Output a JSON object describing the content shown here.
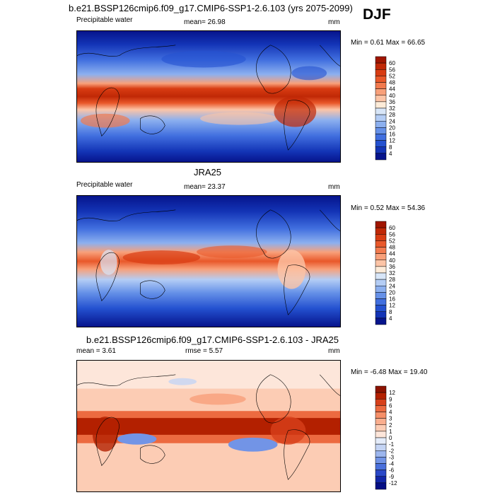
{
  "season": "DJF",
  "chart_data": [
    {
      "type": "heatmap",
      "title": "b.e21.BSSP126cmip6.f09_g17.CMIP6-SSP1-2.6.103 (yrs 2075-2099)",
      "left_label": "Precipitable water",
      "center_label": "mean=  26.98",
      "units": "mm",
      "min_max_label": "Min =   0.61 Max =  66.65",
      "min": 0.61,
      "max": 66.65,
      "mean": 26.98,
      "colorbar_levels": [
        "60",
        "56",
        "52",
        "48",
        "44",
        "40",
        "36",
        "32",
        "28",
        "24",
        "20",
        "16",
        "12",
        "8",
        "4"
      ],
      "colorbar_colors": [
        "#a01500",
        "#c02806",
        "#d83c12",
        "#e9582a",
        "#f27a4e",
        "#f8a07a",
        "#fcc4a6",
        "#fdebd8",
        "#d8e6f8",
        "#b4cdf5",
        "#8cb0ef",
        "#6691e8",
        "#416fdf",
        "#2451d0",
        "#1334b6",
        "#06148c"
      ]
    },
    {
      "type": "heatmap",
      "title": "JRA25",
      "left_label": "Precipitable water",
      "center_label": "mean=  23.37",
      "units": "mm",
      "min_max_label": "Min =   0.52 Max =  54.36",
      "min": 0.52,
      "max": 54.36,
      "mean": 23.37,
      "colorbar_levels": [
        "60",
        "56",
        "52",
        "48",
        "44",
        "40",
        "36",
        "32",
        "28",
        "24",
        "20",
        "16",
        "12",
        "8",
        "4"
      ],
      "colorbar_colors": [
        "#a01500",
        "#c02806",
        "#d83c12",
        "#e9582a",
        "#f27a4e",
        "#f8a07a",
        "#fcc4a6",
        "#fdebd8",
        "#d8e6f8",
        "#b4cdf5",
        "#8cb0ef",
        "#6691e8",
        "#416fdf",
        "#2451d0",
        "#1334b6",
        "#06148c"
      ]
    },
    {
      "type": "heatmap",
      "title": "b.e21.BSSP126cmip6.f09_g17.CMIP6-SSP1-2.6.103 - JRA25",
      "left_label": "mean =   3.61",
      "center_label": "rmse =   5.57",
      "units": "mm",
      "min_max_label": "Min =  -6.48 Max =  19.40",
      "min": -6.48,
      "max": 19.4,
      "mean": 3.61,
      "rmse": 5.57,
      "colorbar_levels": [
        "12",
        "9",
        "6",
        "4",
        "3",
        "2",
        "1",
        "0",
        "-1",
        "-2",
        "-3",
        "-4",
        "-6",
        "-9",
        "-12"
      ],
      "colorbar_colors": [
        "#8c1200",
        "#b32000",
        "#d7401a",
        "#ec6a40",
        "#f68f68",
        "#faae8e",
        "#fcccb4",
        "#fde6da",
        "#e4ecfa",
        "#c4d4f4",
        "#9cb6ee",
        "#7294e6",
        "#4a70dc",
        "#2a48c8",
        "#1226a8",
        "#040e84"
      ]
    }
  ]
}
